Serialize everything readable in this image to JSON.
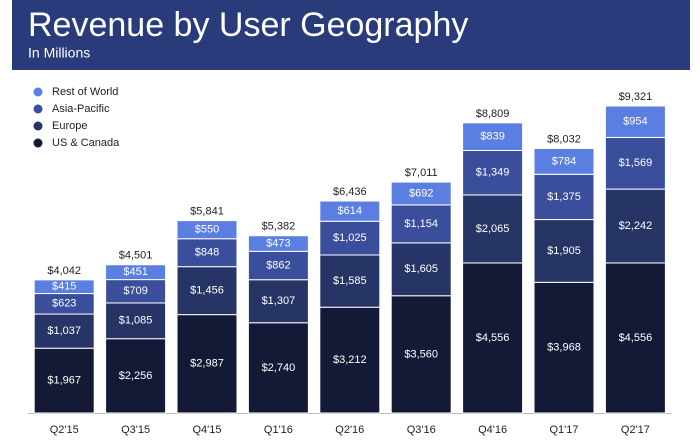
{
  "chart_data": {
    "type": "stacked_bar",
    "title": "Revenue by User Geography",
    "subtitle": "In Millions",
    "categories": [
      "Q2'15",
      "Q3'15",
      "Q4'15",
      "Q1'16",
      "Q2'16",
      "Q3'16",
      "Q4'16",
      "Q1'17",
      "Q2'17"
    ],
    "series": [
      {
        "name": "US & Canada",
        "color": "#141a36",
        "values": [
          1967,
          2256,
          2987,
          2740,
          3212,
          3560,
          4556,
          3968,
          4556
        ],
        "value_labels": [
          "$1,967",
          "$2,256",
          "$2,987",
          "$2,740",
          "$3,212",
          "$3,560",
          "$4,556",
          "$3,968",
          "$4,556"
        ]
      },
      {
        "name": "Europe",
        "color": "#263466",
        "values": [
          1037,
          1085,
          1456,
          1307,
          1585,
          1605,
          2065,
          1905,
          2242
        ],
        "value_labels": [
          "$1,037",
          "$1,085",
          "$1,456",
          "$1,307",
          "$1,585",
          "$1,605",
          "$2,065",
          "$1,905",
          "$2,242"
        ]
      },
      {
        "name": "Asia-Pacific",
        "color": "#3a4e9c",
        "values": [
          623,
          709,
          848,
          862,
          1025,
          1154,
          1349,
          1375,
          1569
        ],
        "value_labels": [
          "$623",
          "$709",
          "$848",
          "$862",
          "$1,025",
          "$1,154",
          "$1,349",
          "$1,375",
          "$1,569"
        ]
      },
      {
        "name": "Rest of World",
        "color": "#5b7fe0",
        "values": [
          415,
          451,
          550,
          473,
          614,
          692,
          839,
          784,
          954
        ],
        "value_labels": [
          "$415",
          "$451",
          "$550",
          "$473",
          "$614",
          "$692",
          "$839",
          "$784",
          "$954"
        ]
      }
    ],
    "totals": {
      "values": [
        4042,
        4501,
        5841,
        5382,
        6436,
        7011,
        8809,
        8032,
        9321
      ],
      "value_labels": [
        "$4,042",
        "$4,501",
        "$5,841",
        "$5,382",
        "$6,436",
        "$7,011",
        "$8,809",
        "$8,032",
        "$9,321"
      ]
    }
  }
}
